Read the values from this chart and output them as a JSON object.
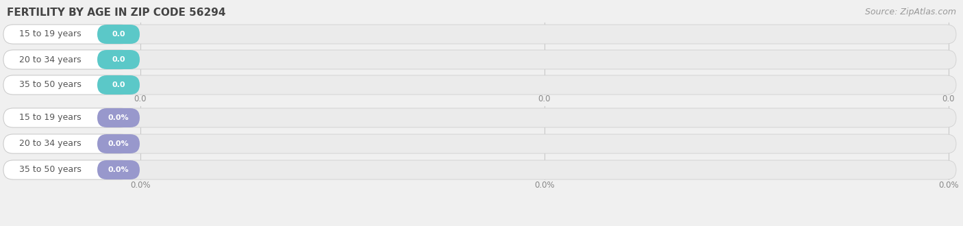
{
  "title": "FERTILITY BY AGE IN ZIP CODE 56294",
  "source_text": "Source: ZipAtlas.com",
  "top_section": {
    "categories": [
      "15 to 19 years",
      "20 to 34 years",
      "35 to 50 years"
    ],
    "values": [
      0.0,
      0.0,
      0.0
    ],
    "bar_accent_color": "#5bc8c8",
    "value_labels": [
      "0.0",
      "0.0",
      "0.0"
    ],
    "axis_ticks": [
      "0.0",
      "0.0",
      "0.0"
    ]
  },
  "bottom_section": {
    "categories": [
      "15 to 19 years",
      "20 to 34 years",
      "35 to 50 years"
    ],
    "values": [
      0.0,
      0.0,
      0.0
    ],
    "bar_accent_color": "#9898cc",
    "value_labels": [
      "0.0%",
      "0.0%",
      "0.0%"
    ],
    "axis_ticks": [
      "0.0%",
      "0.0%",
      "0.0%"
    ]
  },
  "fig_bg_color": "#f0f0f0",
  "bar_bg_color": "#e8e8e8",
  "bar_row_bg": "#f8f8f8",
  "bar_white_pill_color": "#ffffff",
  "title_fontsize": 11,
  "label_fontsize": 9,
  "value_fontsize": 8,
  "tick_fontsize": 8.5,
  "source_fontsize": 9,
  "fig_width": 14.06,
  "fig_height": 3.3,
  "dpi": 100
}
